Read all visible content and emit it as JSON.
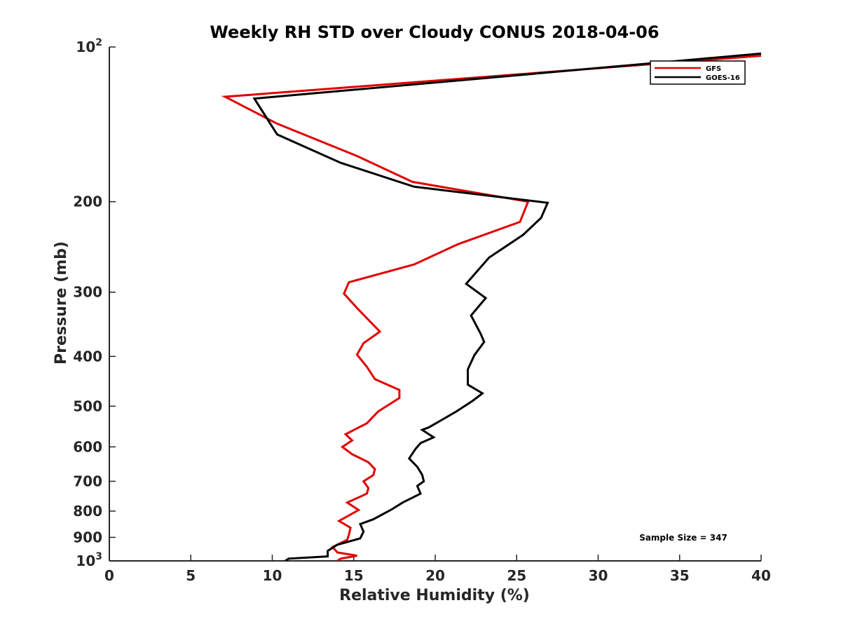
{
  "chart_data": {
    "type": "line",
    "title": "Weekly RH STD over Cloudy CONUS 2018-04-06",
    "xlabel": "Relative Humidity (%)",
    "ylabel": "Pressure (mb)",
    "xlim": [
      0,
      40
    ],
    "ylim": [
      100,
      1000
    ],
    "y_scale": "log",
    "y_reversed": true,
    "grid": false,
    "legend_position": "top-right",
    "xticks": [
      0,
      5,
      10,
      15,
      20,
      25,
      30,
      35,
      40
    ],
    "xtick_labels": [
      "0",
      "5",
      "10",
      "15",
      "20",
      "25",
      "30",
      "35",
      "40"
    ],
    "yticks": [
      {
        "value": 100,
        "base": "10",
        "exp": "2"
      },
      {
        "value": 200,
        "label": "200"
      },
      {
        "value": 300,
        "label": "300"
      },
      {
        "value": 400,
        "label": "400"
      },
      {
        "value": 500,
        "label": "500"
      },
      {
        "value": 600,
        "label": "600"
      },
      {
        "value": 700,
        "label": "700"
      },
      {
        "value": 800,
        "label": "800"
      },
      {
        "value": 900,
        "label": "900"
      },
      {
        "value": 1000,
        "base": "10",
        "exp": "3"
      }
    ],
    "annotation": "Sample Size = 347",
    "series": [
      {
        "name": "GFS",
        "color": "#e00000",
        "points": [
          [
            40,
            104
          ],
          [
            7.1,
            125
          ],
          [
            10.3,
            141
          ],
          [
            15.2,
            163
          ],
          [
            18.6,
            183
          ],
          [
            25.7,
            200
          ],
          [
            25.2,
            219
          ],
          [
            21.4,
            242
          ],
          [
            18.7,
            265
          ],
          [
            14.7,
            287
          ],
          [
            14.4,
            302
          ],
          [
            15.2,
            322
          ],
          [
            16.6,
            358
          ],
          [
            15.6,
            377
          ],
          [
            15.2,
            397
          ],
          [
            15.8,
            419
          ],
          [
            16.3,
            443
          ],
          [
            17.8,
            465
          ],
          [
            17.8,
            482
          ],
          [
            16.5,
            512
          ],
          [
            15.8,
            540
          ],
          [
            14.5,
            567
          ],
          [
            14.9,
            583
          ],
          [
            14.3,
            600
          ],
          [
            14.9,
            620
          ],
          [
            15.9,
            643
          ],
          [
            16.3,
            663
          ],
          [
            16.2,
            681
          ],
          [
            15.6,
            700
          ],
          [
            15.9,
            722
          ],
          [
            15.8,
            740
          ],
          [
            14.6,
            770
          ],
          [
            15.3,
            796
          ],
          [
            14.1,
            836
          ],
          [
            14.8,
            862
          ],
          [
            14.7,
            890
          ],
          [
            14.6,
            910
          ],
          [
            13.7,
            940
          ],
          [
            14.0,
            963
          ],
          [
            15.2,
            977
          ],
          [
            14.2,
            990
          ],
          [
            14.0,
            1000
          ]
        ]
      },
      {
        "name": "GOES-16",
        "color": "#000000",
        "points": [
          [
            40,
            103
          ],
          [
            8.9,
            126
          ],
          [
            10.3,
            148
          ],
          [
            14.2,
            168
          ],
          [
            18.7,
            187
          ],
          [
            26.9,
            201
          ],
          [
            26.5,
            215
          ],
          [
            25.4,
            232
          ],
          [
            23.3,
            257
          ],
          [
            21.9,
            289
          ],
          [
            23.1,
            308
          ],
          [
            22.2,
            333
          ],
          [
            22.8,
            362
          ],
          [
            23.0,
            375
          ],
          [
            22.4,
            398
          ],
          [
            22.0,
            424
          ],
          [
            22.0,
            454
          ],
          [
            22.9,
            472
          ],
          [
            22.3,
            488
          ],
          [
            21.3,
            512
          ],
          [
            19.6,
            550
          ],
          [
            19.2,
            556
          ],
          [
            19.9,
            575
          ],
          [
            19.1,
            590
          ],
          [
            18.8,
            605
          ],
          [
            18.4,
            632
          ],
          [
            18.9,
            656
          ],
          [
            19.2,
            680
          ],
          [
            19.3,
            700
          ],
          [
            18.9,
            715
          ],
          [
            19.1,
            740
          ],
          [
            18.0,
            770
          ],
          [
            17.3,
            795
          ],
          [
            16.2,
            830
          ],
          [
            15.4,
            848
          ],
          [
            15.6,
            877
          ],
          [
            15.4,
            904
          ],
          [
            14.0,
            930
          ],
          [
            13.4,
            956
          ],
          [
            13.4,
            980
          ],
          [
            11.0,
            990
          ],
          [
            10.8,
            1000
          ]
        ]
      }
    ]
  }
}
